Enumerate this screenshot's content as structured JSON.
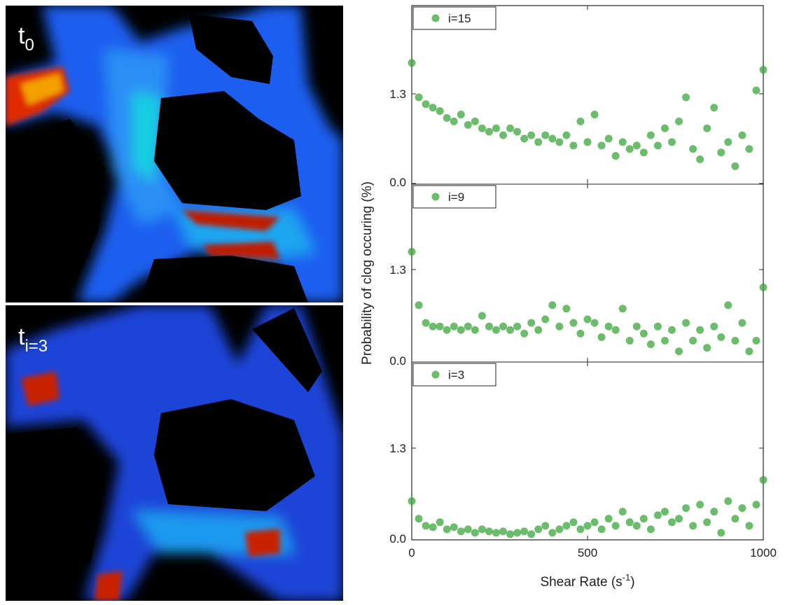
{
  "images": [
    {
      "label": "t",
      "sub": "0"
    },
    {
      "label": "t",
      "sub": "i=3"
    }
  ],
  "ylabel": "Probability of clog occuring  (%)",
  "chart_data": [
    {
      "type": "scatter",
      "x": [
        0,
        20,
        40,
        60,
        80,
        100,
        120,
        140,
        160,
        180,
        200,
        220,
        240,
        260,
        280,
        300,
        320,
        340,
        360,
        380,
        400,
        420,
        440,
        460,
        480,
        500,
        520,
        540,
        560,
        580,
        600,
        620,
        640,
        660,
        680,
        700,
        720,
        740,
        760,
        780,
        800,
        820,
        840,
        860,
        880,
        900,
        920,
        940,
        960,
        980,
        1000
      ],
      "series": [
        {
          "name": "i=15",
          "color": "#3aa63a",
          "values": [
            1.75,
            1.25,
            1.15,
            1.1,
            1.05,
            0.95,
            0.9,
            1.0,
            0.85,
            0.9,
            0.8,
            0.75,
            0.8,
            0.7,
            0.8,
            0.75,
            0.65,
            0.7,
            0.6,
            0.7,
            0.65,
            0.6,
            0.7,
            0.55,
            0.9,
            0.6,
            1.0,
            0.55,
            0.65,
            0.4,
            0.6,
            0.5,
            0.55,
            0.45,
            0.7,
            0.55,
            0.8,
            0.6,
            0.9,
            1.25,
            0.5,
            0.35,
            0.8,
            1.1,
            0.45,
            0.6,
            0.25,
            0.7,
            0.5,
            1.35,
            1.65
          ]
        }
      ],
      "xlim": [
        0,
        1000
      ],
      "xticks": [
        0,
        500,
        1000
      ],
      "ylim": [
        0,
        2.58
      ],
      "yticks": [
        {
          "value": 0,
          "label": "0.0"
        },
        1.3
      ]
    },
    {
      "type": "scatter",
      "x": [
        0,
        20,
        40,
        60,
        80,
        100,
        120,
        140,
        160,
        180,
        200,
        220,
        240,
        260,
        280,
        300,
        320,
        340,
        360,
        380,
        400,
        420,
        440,
        460,
        480,
        500,
        520,
        540,
        560,
        580,
        600,
        620,
        640,
        660,
        680,
        700,
        720,
        740,
        760,
        780,
        800,
        820,
        840,
        860,
        880,
        900,
        920,
        940,
        960,
        980,
        1000
      ],
      "series": [
        {
          "name": "i=9",
          "color": "#3aa63a",
          "values": [
            1.55,
            0.8,
            0.55,
            0.5,
            0.5,
            0.45,
            0.5,
            0.45,
            0.5,
            0.45,
            0.65,
            0.5,
            0.45,
            0.5,
            0.45,
            0.5,
            0.4,
            0.55,
            0.45,
            0.6,
            0.8,
            0.5,
            0.75,
            0.55,
            0.4,
            0.6,
            0.55,
            0.35,
            0.5,
            0.45,
            0.75,
            0.3,
            0.5,
            0.4,
            0.25,
            0.5,
            0.3,
            0.45,
            0.15,
            0.55,
            0.3,
            0.45,
            0.2,
            0.5,
            0.35,
            0.8,
            0.3,
            0.55,
            0.15,
            0.3,
            1.05
          ]
        }
      ],
      "xlim": [
        0,
        1000
      ],
      "xticks": [
        0,
        500,
        1000
      ],
      "ylim": [
        0,
        2.5
      ],
      "yticks": [
        {
          "value": 0,
          "label": "0.0"
        },
        1.3
      ]
    },
    {
      "type": "scatter",
      "x": [
        0,
        20,
        40,
        60,
        80,
        100,
        120,
        140,
        160,
        180,
        200,
        220,
        240,
        260,
        280,
        300,
        320,
        340,
        360,
        380,
        400,
        420,
        440,
        460,
        480,
        500,
        520,
        540,
        560,
        580,
        600,
        620,
        640,
        660,
        680,
        700,
        720,
        740,
        760,
        780,
        800,
        820,
        840,
        860,
        880,
        900,
        920,
        940,
        960,
        980,
        1000
      ],
      "series": [
        {
          "name": "i=3",
          "color": "#3aa63a",
          "values": [
            0.55,
            0.3,
            0.2,
            0.18,
            0.25,
            0.15,
            0.18,
            0.12,
            0.15,
            0.1,
            0.15,
            0.12,
            0.1,
            0.12,
            0.08,
            0.1,
            0.12,
            0.08,
            0.15,
            0.2,
            0.1,
            0.15,
            0.2,
            0.25,
            0.15,
            0.2,
            0.25,
            0.15,
            0.3,
            0.2,
            0.4,
            0.25,
            0.2,
            0.3,
            0.15,
            0.35,
            0.4,
            0.25,
            0.3,
            0.45,
            0.2,
            0.5,
            0.25,
            0.4,
            0.1,
            0.55,
            0.3,
            0.45,
            0.2,
            0.5,
            0.85
          ]
        }
      ],
      "xlim": [
        0,
        1000
      ],
      "xticks": [
        0,
        500,
        1000
      ],
      "ylim": [
        0,
        2.52
      ],
      "yticks": [
        {
          "value": 0,
          "label": "0.0"
        },
        1.3
      ],
      "xlabel": {
        "text": "Shear Rate (s",
        "sup": "-1",
        "end": ")"
      }
    }
  ]
}
